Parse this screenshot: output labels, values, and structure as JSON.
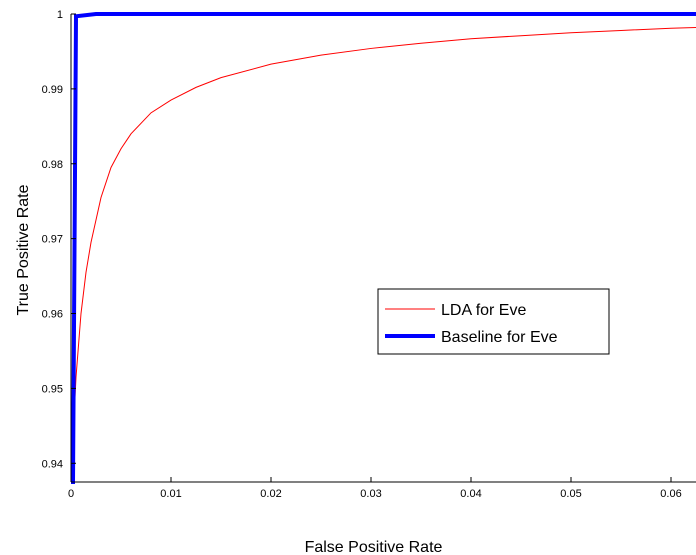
{
  "chart_data": {
    "type": "line",
    "title": "",
    "xlabel": "False Positive Rate",
    "ylabel": "True Positive Rate",
    "xlim": [
      0,
      0.0625
    ],
    "ylim": [
      0.9375,
      1.0
    ],
    "x_ticks": [
      0,
      0.01,
      0.02,
      0.03,
      0.04,
      0.05,
      0.06
    ],
    "x_tick_labels": [
      "0",
      "0.01",
      "0.02",
      "0.03",
      "0.04",
      "0.05",
      "0.06"
    ],
    "y_ticks": [
      0.94,
      0.95,
      0.96,
      0.97,
      0.98,
      0.99,
      1.0
    ],
    "y_tick_labels": [
      "0.94",
      "0.95",
      "0.96",
      "0.97",
      "0.98",
      "0.99",
      "1"
    ],
    "grid": false,
    "legend_position": "center-right",
    "series": [
      {
        "name": "LDA for Eve",
        "color": "#ff0000",
        "line_width": "thin",
        "x": [
          0.0,
          0.0002,
          0.0005,
          0.001,
          0.0015,
          0.002,
          0.003,
          0.004,
          0.005,
          0.006,
          0.008,
          0.01,
          0.0125,
          0.015,
          0.02,
          0.025,
          0.03,
          0.035,
          0.04,
          0.045,
          0.05,
          0.055,
          0.06,
          0.0625
        ],
        "y": [
          0.9375,
          0.9435,
          0.9515,
          0.96,
          0.9655,
          0.9695,
          0.9755,
          0.9795,
          0.982,
          0.984,
          0.9868,
          0.9885,
          0.9902,
          0.9915,
          0.9933,
          0.9945,
          0.9954,
          0.9961,
          0.9967,
          0.9971,
          0.9975,
          0.9978,
          0.9981,
          0.9982
        ]
      },
      {
        "name": "Baseline for Eve",
        "color": "#0000ff",
        "line_width": "thick",
        "x": [
          0.0,
          0.0002,
          0.0005,
          0.0025,
          0.0625
        ],
        "y": [
          0.9375,
          0.9375,
          0.9997,
          1.0,
          1.0
        ]
      }
    ]
  }
}
